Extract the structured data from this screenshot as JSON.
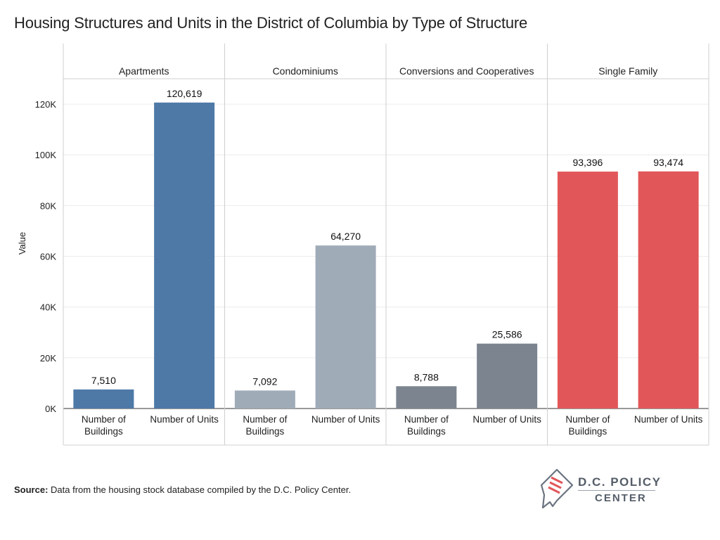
{
  "title": "Housing Structures and Units in the District of Columbia by Type of Structure",
  "source": {
    "label": "Source:",
    "text": "Data from the housing stock database compiled by the D.C. Policy Center."
  },
  "logo": {
    "line1": "D.C. POLICY",
    "line2": "CENTER",
    "icon": "dc-map-icon"
  },
  "chart_data": {
    "type": "bar",
    "ylabel": "Value",
    "ylim": [
      0,
      130000
    ],
    "yticks": [
      0,
      20000,
      40000,
      60000,
      80000,
      100000,
      120000
    ],
    "ytick_labels": [
      "0K",
      "20K",
      "40K",
      "60K",
      "80K",
      "100K",
      "120K"
    ],
    "grid": true,
    "panels": [
      {
        "name": "Apartments",
        "color": "#4e79a7",
        "bars": [
          {
            "category": "Number of Buildings",
            "value": 7510,
            "label": "7,510"
          },
          {
            "category": "Number of Units",
            "value": 120619,
            "label": "120,619"
          }
        ]
      },
      {
        "name": "Condominiums",
        "color": "#a0abb8",
        "bars": [
          {
            "category": "Number of Buildings",
            "value": 7092,
            "label": "7,092"
          },
          {
            "category": "Number of Units",
            "value": 64270,
            "label": "64,270"
          }
        ]
      },
      {
        "name": "Conversions and Cooperatives",
        "color": "#7c8490",
        "bars": [
          {
            "category": "Number of Buildings",
            "value": 8788,
            "label": "8,788"
          },
          {
            "category": "Number of Units",
            "value": 25586,
            "label": "25,586"
          }
        ]
      },
      {
        "name": "Single Family",
        "color": "#e15759",
        "bars": [
          {
            "category": "Number of Buildings",
            "value": 93396,
            "label": "93,396"
          },
          {
            "category": "Number of Units",
            "value": 93474,
            "label": "93,474"
          }
        ]
      }
    ]
  }
}
